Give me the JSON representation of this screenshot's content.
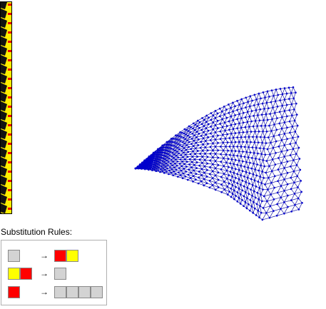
{
  "rules": {
    "title": "Substitution Rules:",
    "arrow": "→",
    "items": [
      {
        "lhs": [
          "gray"
        ],
        "rhs": [
          "red",
          "yellow"
        ]
      },
      {
        "lhs": [
          "yellow",
          "red"
        ],
        "rhs": [
          "gray"
        ]
      },
      {
        "lhs": [
          "red"
        ],
        "rhs": [
          "gray",
          "gray",
          "gray",
          "gray"
        ]
      }
    ]
  },
  "colors": {
    "gray": "#d3d3d3",
    "red": "#ff0000",
    "yellow": "#ffff00",
    "mesh_edge": "#1a1aaa",
    "mesh_node": "#0000cc"
  },
  "icons": {
    "rule_arrow": "arrow-right-icon"
  }
}
